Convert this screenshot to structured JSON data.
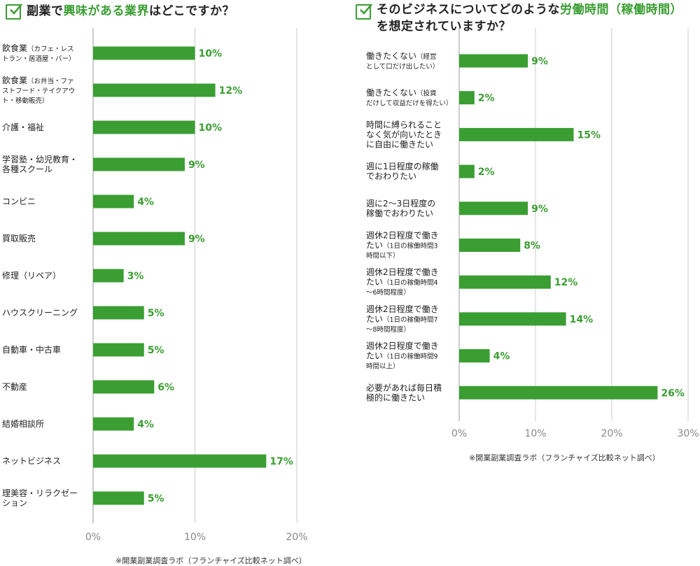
{
  "left": {
    "title_pre": "副業で",
    "title_hl": "興味がある業界",
    "title_post": "はどこですか？",
    "source": "※開業副業調査ラボ（フランチャイズ比較ネット調べ）"
  },
  "right": {
    "title_line1_pre": "そのビジネスについてどのような",
    "title_line1_hl": "労働時間（稼働時間）",
    "title_line2": "を想定されていますか？",
    "source": "※開業副業調査ラボ（フランチャイズ比較ネット調べ）"
  },
  "chart_data": [
    {
      "type": "bar",
      "orientation": "horizontal",
      "title": "副業で興味がある業界はどこですか？",
      "categories": [
        {
          "main": "飲食業",
          "sub": [
            "（カフェ・レス",
            "トラン・居酒屋・バー）"
          ]
        },
        {
          "main": "飲食業",
          "sub": [
            "（お弁当・ファ",
            "ストフード・テイクアウ",
            "ト・移動販売）"
          ]
        },
        {
          "main": "介護・福祉",
          "sub": []
        },
        {
          "main": "学習塾・幼児教育・",
          "sub": [
            "各種スクール"
          ]
        },
        {
          "main": "コンビニ",
          "sub": []
        },
        {
          "main": "買取販売",
          "sub": []
        },
        {
          "main": "修理（リペア）",
          "sub": []
        },
        {
          "main": "ハウスクリーニング",
          "sub": []
        },
        {
          "main": "自動車・中古車",
          "sub": []
        },
        {
          "main": "不動産",
          "sub": []
        },
        {
          "main": "結婚相談所",
          "sub": []
        },
        {
          "main": "ネットビジネス",
          "sub": []
        },
        {
          "main": "理美容・リラクゼー",
          "sub": [
            "ション"
          ]
        }
      ],
      "values": [
        10,
        12,
        10,
        9,
        4,
        9,
        3,
        5,
        5,
        6,
        4,
        17,
        5
      ],
      "value_suffix": "%",
      "xlim": [
        0,
        20
      ],
      "xticks": [
        0,
        10,
        20
      ],
      "xtick_labels": [
        "0%",
        "10%",
        "20%"
      ],
      "grid": true,
      "bar_color": "#3a9e32"
    },
    {
      "type": "bar",
      "orientation": "horizontal",
      "title": "そのビジネスについてどのような労働時間（稼働時間）を想定されていますか？",
      "categories": [
        {
          "main": "働きたくない",
          "sub": [
            "（経営",
            "として口だけ出したい）"
          ]
        },
        {
          "main": "働きたくない",
          "sub": [
            "（投資",
            "だけして収益だけを得たい）"
          ]
        },
        {
          "main": "時間に縛られること",
          "sub": [
            "なく気が向いたときに自由に働きたい"
          ]
        },
        {
          "main": "週に1日程度の稼働",
          "sub": [
            "でおわりたい"
          ]
        },
        {
          "main": "週に2〜3日程度の",
          "sub": [
            "稼働でおわりたい"
          ]
        },
        {
          "main": "週休2日程度で働き",
          "sub": [
            "たい",
            "（1日の稼働時間3",
            "時間以下）"
          ]
        },
        {
          "main": "週休2日程度で働き",
          "sub": [
            "たい",
            "（1日の稼働時間4",
            "〜6時間程度）"
          ]
        },
        {
          "main": "週休2日程度で働き",
          "sub": [
            "たい",
            "（1日の稼働時間7",
            "〜8時間程度）"
          ]
        },
        {
          "main": "週休2日程度で働き",
          "sub": [
            "たい",
            "（1日の稼働時間9",
            "時間以上）"
          ]
        },
        {
          "main": "必要があれば毎日積",
          "sub": [
            "極的に働きたい"
          ]
        }
      ],
      "values": [
        9,
        2,
        15,
        2,
        9,
        8,
        12,
        14,
        4,
        26
      ],
      "value_suffix": "%",
      "xlim": [
        0,
        30
      ],
      "xticks": [
        0,
        10,
        20,
        30
      ],
      "xtick_labels": [
        "0%",
        "10%",
        "20%",
        "30%"
      ],
      "grid": true,
      "bar_color": "#3a9e32"
    }
  ]
}
